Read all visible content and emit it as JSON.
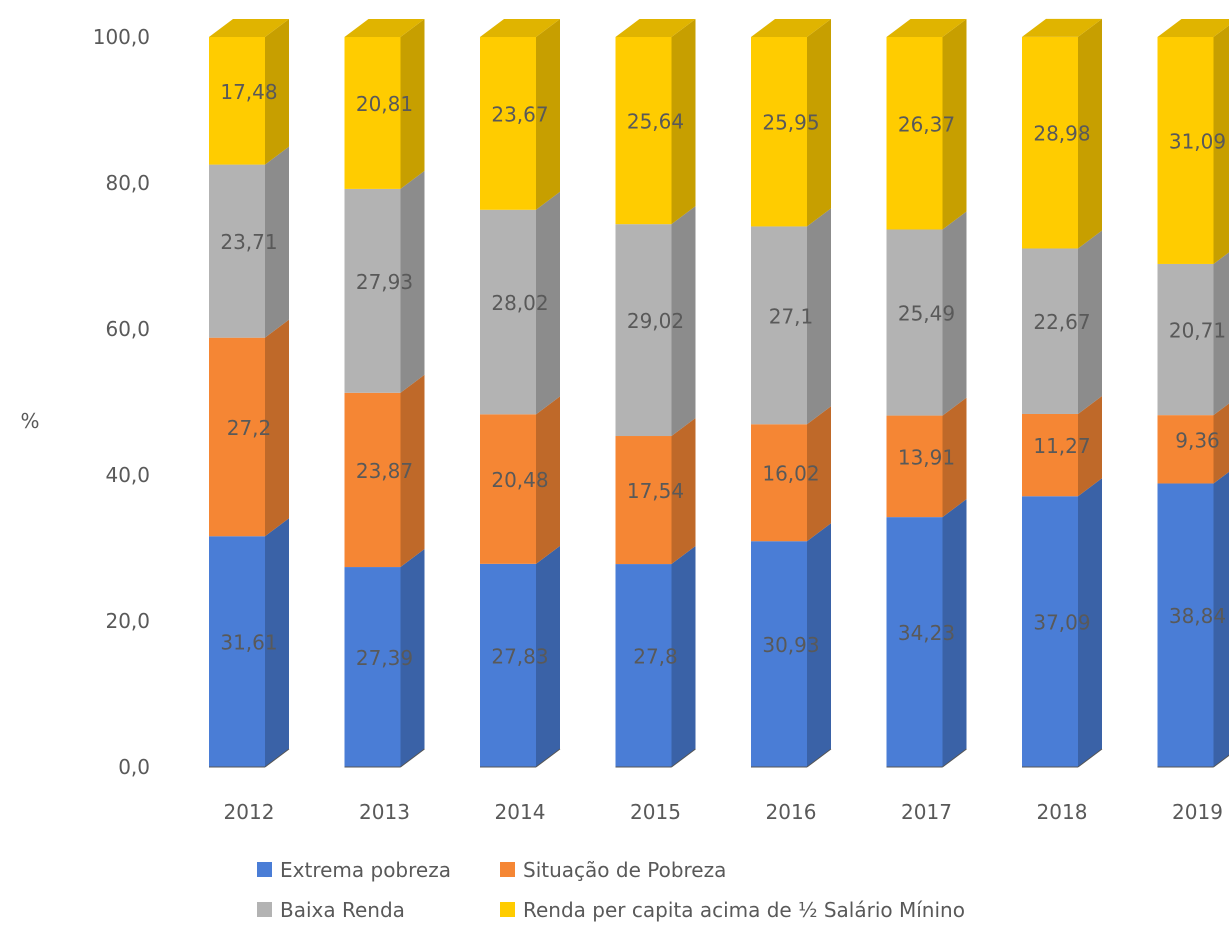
{
  "chart_data": {
    "type": "bar",
    "stacked": true,
    "three_d": true,
    "ylabel": "%",
    "xlabel": "",
    "ylim": [
      0,
      100
    ],
    "yticks": [
      "0,0",
      "20,0",
      "40,0",
      "60,0",
      "80,0",
      "100,0"
    ],
    "yticks_values": [
      0,
      20,
      40,
      60,
      80,
      100
    ],
    "grid": false,
    "legend_position": "bottom",
    "categories": [
      "2012",
      "2013",
      "2014",
      "2015",
      "2016",
      "2017",
      "2018",
      "2019"
    ],
    "series": [
      {
        "name": "Extrema pobreza",
        "color": "#4A7DD6",
        "values": [
          31.61,
          27.39,
          27.83,
          27.8,
          30.93,
          34.23,
          37.09,
          38.84
        ],
        "labels": [
          "31,61",
          "27,39",
          "27,83",
          "27,8",
          "30,93",
          "34,23",
          "37,09",
          "38,84"
        ]
      },
      {
        "name": "Situação de Pobreza",
        "color": "#F58634",
        "values": [
          27.2,
          23.87,
          20.48,
          17.54,
          16.02,
          13.91,
          11.27,
          9.36
        ],
        "labels": [
          "27,2",
          "23,87",
          "20,48",
          "17,54",
          "16,02",
          "13,91",
          "11,27",
          "9,36"
        ]
      },
      {
        "name": "Baixa Renda",
        "color": "#B3B3B3",
        "values": [
          23.71,
          27.93,
          28.02,
          29.02,
          27.1,
          25.49,
          22.67,
          20.71
        ],
        "labels": [
          "23,71",
          "27,93",
          "28,02",
          "29,02",
          "27,1",
          "25,49",
          "22,67",
          "20,71"
        ]
      },
      {
        "name": "Renda per capita acima de ½ Salário Mínino",
        "color": "#FFCC00",
        "values": [
          17.48,
          20.81,
          23.67,
          25.64,
          25.95,
          26.37,
          28.98,
          31.09
        ],
        "labels": [
          "17,48",
          "20,81",
          "23,67",
          "25,64",
          "25,95",
          "26,37",
          "28,98",
          "31,09"
        ]
      }
    ]
  }
}
